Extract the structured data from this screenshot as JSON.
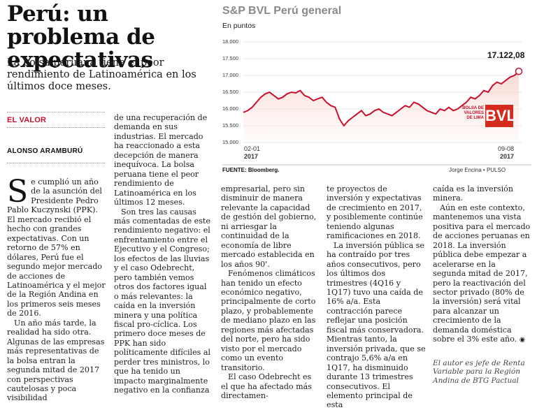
{
  "article": {
    "headline": "Perú: un problema de expectativas",
    "deck": "La bolsa peruana tiene el peor rendimiento de Latinoamérica en los últimos doce meses.",
    "section": "EL VALOR",
    "author": "ALONSO ARAMBURÚ",
    "dropcap": "S",
    "col1": "e cumplió un año de la asunción del Presidente Pedro Pablo Kuczynski (PPK). El mercado recibió el hecho con grandes expectativas. Con un retorno de 57% en dólares, Perú fue el segundo mejor mercado de acciones de Latinoamérica y el mejor de la Región Andina en los primeros seis meses de 2016.",
    "col1b": "Un año más tarde, la realidad ha sido otra. Algunas de las empresas más representativas de la bolsa entran la segunda mitad de 2017 con perspectivas cautelosas y poca visibilidad",
    "col2": "de una recuperación de demanda en sus industrias. El mercado ha reaccionado a esta decepción de manera inequívoca. La bolsa peruana tiene el peor rendimiento de Latinoamérica en los últimos 12 meses.",
    "col2b": "Son tres las causas más comentadas de este rendimiento negativo: el enfrentamiento entre el Ejecutivo y el Congreso; los efectos de las lluvias y el caso Odebrecht, pero también vemos otros dos factores igual o más relevantes: la caída en la inversión minera y una política fiscal pro-cíclica. Los primero doce meses de PPK han sido políticamente difíciles al perder tres ministros, lo que ha tenido un impacto marginalmente negativo en la confianza",
    "col3": "empresarial, pero sin disminuir de manera relevante la capacidad de gestión del gobierno, ni arriesgar la continuidad de la economía de libre mercado establecida en los años 90'.",
    "col3b": "Fenómenos climáticos han tenido un efecto económico negativo, principalmente de corto plazo, y probablemente de mediano plazo en las regiones más afectadas del norte, pero ha sido visto por el mercado como un evento transitorio.",
    "col3c": "El caso Odebrecht es el que ha afectado más directamen-",
    "col4": "te proyectos de inversión y expectativas de crecimiento en 2017, y posiblemente continúe teniendo algunas ramificaciones en 2018.",
    "col4b": "La inversión pública se ha contraído por tres años consecutivos, pero los últimos dos trimestres (4Q16 y 1Q17) tuvo una caída de 16% a/a. Esta contracción parece reflejar una posición fiscal más conservadora. Mientras tanto, la inversión privada, que se contrajo 5,6% a/a en 1Q17, ha disminuido durante 13 trimestres consecutivos. El elemento principal de esta",
    "col5": "caída es la inversión minera.",
    "col5b": "Aún en este contexto, mantenemos una vista positiva para el mercado de acciones peruanas en 2018. La inversión pública debe empezar a acelerarse en la segunda mitad de 2017, pero la reactivación del sector privado (80% de la inversión) será vital para alcanzar un crecimiento de la demanda doméstica sobre el 3% este año.",
    "end_mark": "◉",
    "bio": "El autor es jefe de Renta Variable para la Región Andina de BTG Pactual"
  },
  "chart_data": {
    "type": "line",
    "title": "S&P BVL Perú general",
    "unit_label": "En puntos",
    "ylim": [
      15000,
      18000
    ],
    "yticks": [
      "18.000",
      "17.500",
      "17.000",
      "16.500",
      "16.000",
      "15.500",
      "15.000"
    ],
    "x_start": {
      "date": "02-01",
      "year": "2017"
    },
    "x_end": {
      "date": "09-08",
      "year": "2017"
    },
    "last_value_label": "17.122,08",
    "values": [
      15900,
      15950,
      16050,
      16200,
      16350,
      16450,
      16500,
      16400,
      16300,
      16350,
      16450,
      16500,
      16480,
      16550,
      16400,
      16350,
      16250,
      16300,
      16350,
      16200,
      16100,
      16050,
      15700,
      15500,
      15650,
      15750,
      15850,
      15950,
      15800,
      15850,
      15950,
      16000,
      15900,
      15850,
      15800,
      15900,
      16000,
      16100,
      16050,
      16200,
      16150,
      16050,
      15950,
      15900,
      15850,
      16000,
      15950,
      16050,
      15950,
      16000,
      16100,
      16200,
      16350,
      16300,
      16400,
      16550,
      16500,
      16700,
      16800,
      16750,
      16850,
      16950,
      17000,
      17122
    ],
    "source": "FUENTE: Bloomberg.",
    "credit": "Jorge Encina • PULSO",
    "logo_small": "BOLSA DE VALORES DE LIMA",
    "logo_big": "BVL",
    "line_color": "#c8102e"
  }
}
